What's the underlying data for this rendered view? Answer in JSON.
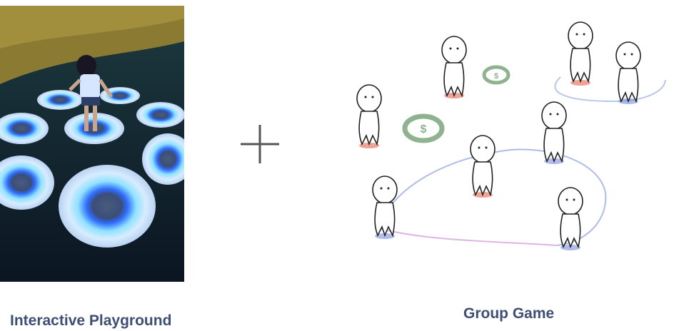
{
  "left_panel": {
    "caption": "Interactive Playground",
    "image_icon": "glowing-floor-discs-photo"
  },
  "connector": {
    "icon": "plus-icon"
  },
  "right_panel": {
    "caption": "Group Game",
    "image_icon": "stick-figures-coin-sketch",
    "coin_symbol": "$"
  },
  "colors": {
    "caption": "#3e4f73",
    "glow_blue": "#3a6cff",
    "glow_cyan": "#7fe3ff",
    "coin_green": "#8fb38f",
    "sketch_red": "#e0583c",
    "sketch_blue": "#6f86d8"
  }
}
